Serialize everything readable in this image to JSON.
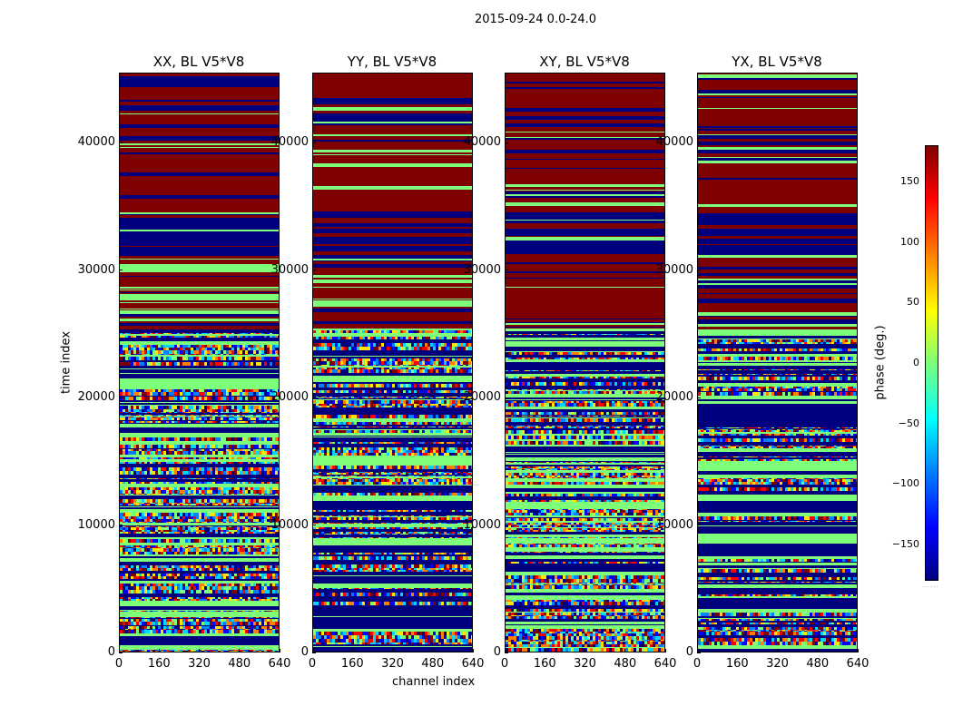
{
  "suptitle": "2015-09-24 0.0-24.0",
  "colors": {
    "dark_red": "#7f0000",
    "dark_blue": "#00007f",
    "light_green": "#7dff7a",
    "cyan": "#00d4ff",
    "yellow": "#ffe600"
  },
  "chart_data": {
    "type": "heatmap",
    "colormap": "jet",
    "panels": [
      {
        "title": "XX, BL V5*V8"
      },
      {
        "title": "YY, BL V5*V8"
      },
      {
        "title": "XY, BL V5*V8"
      },
      {
        "title": "YX, BL V5*V8"
      }
    ],
    "xlabel": "channel index",
    "ylabel": "time index",
    "xlim": [
      0,
      640
    ],
    "ylim": [
      0,
      45500
    ],
    "xticks": [
      0,
      160,
      320,
      480,
      640
    ],
    "yticks": [
      0,
      10000,
      20000,
      30000,
      40000
    ],
    "colorbar": {
      "label": "phase (deg.)",
      "range": [
        -180,
        180
      ],
      "ticks": [
        -150,
        -100,
        -50,
        0,
        50,
        100,
        150
      ],
      "tick_labels": [
        "−150",
        "−100",
        "−50",
        "0",
        "50",
        "100",
        "150"
      ]
    }
  }
}
